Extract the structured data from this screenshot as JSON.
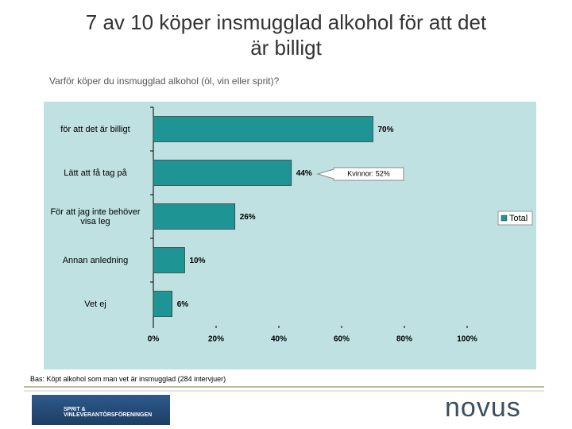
{
  "title": "7 av 10 köper insmugglad alkohol för att det är billigt",
  "subtitle": "Varför köper du insmugglad alkohol (öl, vin eller sprit)?",
  "footnote": "Bas: Köpt alkohol som man vet är insmugglad (284 intervjuer)",
  "logos": [
    "SPRIT & VINLEVERANTÖRSFÖRENINGEN",
    "novus"
  ],
  "chart_data": {
    "type": "bar",
    "orientation": "horizontal",
    "categories": [
      "för att det är billigt",
      "Lätt att få tag på",
      "För att jag inte behöver visa leg",
      "Annan anledning",
      "Vet ej"
    ],
    "series": [
      {
        "name": "Total",
        "color": "#1f9494",
        "values": [
          70,
          44,
          26,
          10,
          6
        ],
        "value_labels": [
          "70%",
          "44%",
          "26%",
          "10%",
          "6%"
        ]
      }
    ],
    "xlim": [
      0,
      100
    ],
    "xticks": [
      {
        "value": 0,
        "label": "0%"
      },
      {
        "value": 20,
        "label": "20%"
      },
      {
        "value": 40,
        "label": "40%"
      },
      {
        "value": 60,
        "label": "60%"
      },
      {
        "value": 80,
        "label": "80%"
      },
      {
        "value": 100,
        "label": "100%"
      }
    ],
    "annotation": "Kvinnor: 52%",
    "legend": "right",
    "background": "#bfe1e1"
  }
}
